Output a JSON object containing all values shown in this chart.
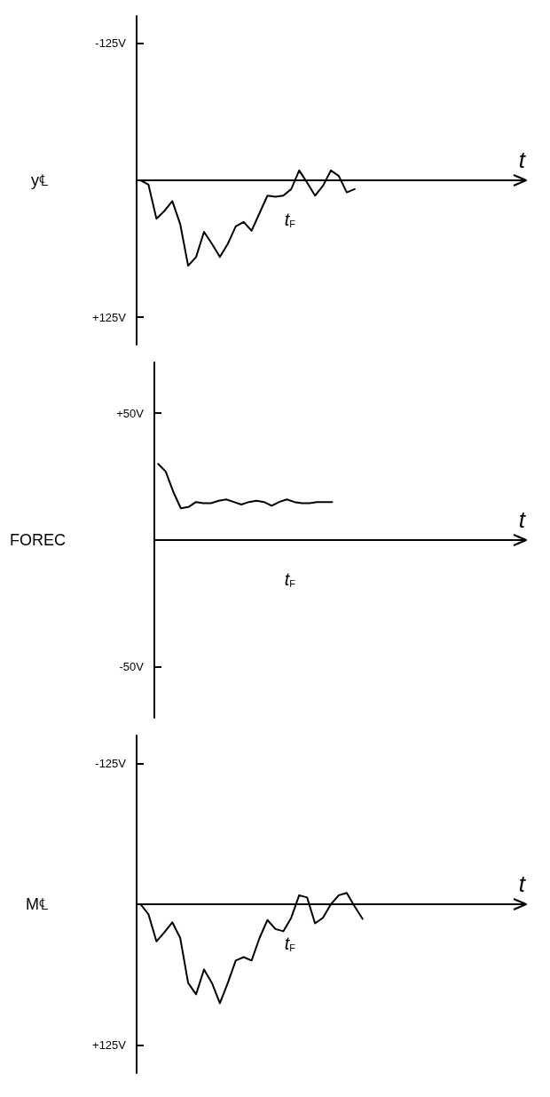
{
  "chart_data": [
    {
      "type": "line",
      "ylabel": "y℄",
      "xlabel": "t",
      "categories": [
        null,
        null,
        null,
        null,
        null,
        null,
        null,
        null,
        null,
        null,
        null,
        null,
        null,
        null,
        null,
        null,
        null,
        null,
        null,
        null,
        null,
        null,
        null,
        null,
        null,
        null,
        null,
        null,
        null,
        null,
        null,
        null,
        null,
        null,
        null,
        null,
        null,
        null,
        null,
        null,
        null,
        null,
        null,
        null,
        null,
        null,
        null,
        null,
        null
      ],
      "series": [
        {
          "color": "#000000",
          "values": [
            0,
            4,
            35,
            28,
            19,
            40,
            78,
            70,
            47,
            58,
            70,
            58,
            42,
            38,
            46,
            30,
            14,
            15,
            14,
            8,
            -9,
            2,
            14,
            5,
            -9,
            -4,
            11,
            8,
            null,
            null,
            null,
            null,
            null,
            null,
            null,
            null,
            null,
            null,
            null,
            null,
            null,
            null,
            null,
            null,
            null,
            null,
            null,
            null,
            null
          ]
        }
      ],
      "ylim": [
        150,
        -150
      ],
      "yticks": [
        {
          "value": -125,
          "label": "-125V"
        },
        {
          "value": 125,
          "label": "+125V"
        }
      ],
      "grid": false,
      "marker": "none",
      "annotations": [
        "t$_{F}$"
      ]
    },
    {
      "type": "line",
      "ylabel": "FOREC",
      "xlabel": "t",
      "categories": [
        null,
        null,
        null,
        null,
        null,
        null,
        null,
        null,
        null,
        null,
        null,
        null,
        null,
        null,
        null,
        null,
        null,
        null,
        null,
        null,
        null,
        null,
        null,
        null,
        null,
        null,
        null,
        null,
        null,
        null,
        null,
        null,
        null,
        null,
        null,
        null,
        null,
        null,
        null,
        null,
        null,
        null,
        null,
        null,
        null,
        null,
        null,
        null,
        null
      ],
      "series": [
        {
          "color": "#000000",
          "values": [
            30,
            27,
            19,
            12.5,
            13,
            15,
            14.5,
            14.5,
            15.5,
            16,
            15,
            14,
            15,
            15.5,
            15,
            13.5,
            15,
            16,
            15,
            14.5,
            14.5,
            15,
            15,
            15,
            null,
            null,
            null,
            null,
            null,
            null,
            null,
            null,
            null,
            null,
            null,
            null,
            null,
            null,
            null,
            null,
            null,
            null,
            null,
            null,
            null,
            null,
            null,
            null,
            null
          ]
        }
      ],
      "ylim": [
        -70,
        70
      ],
      "yticks": [
        {
          "value": -50,
          "label": "-50V"
        },
        {
          "value": 50,
          "label": "+50V"
        }
      ],
      "grid": false,
      "marker": "none",
      "annotations": [
        "t$_{F}$"
      ]
    },
    {
      "type": "line",
      "ylabel": "M℄",
      "xlabel": "t",
      "categories": [
        null,
        null,
        null,
        null,
        null,
        null,
        null,
        null,
        null,
        null,
        null,
        null,
        null,
        null,
        null,
        null,
        null,
        null,
        null,
        null,
        null,
        null,
        null,
        null,
        null,
        null,
        null,
        null,
        null,
        null,
        null,
        null,
        null,
        null,
        null,
        null,
        null,
        null,
        null,
        null,
        null,
        null,
        null,
        null,
        null,
        null,
        null,
        null,
        null
      ],
      "series": [
        {
          "color": "#000000",
          "values": [
            0,
            9,
            33,
            25,
            16,
            30,
            70,
            80,
            58,
            70,
            88,
            70,
            50,
            47,
            50,
            30,
            14,
            22,
            24,
            12,
            -8,
            -6,
            17,
            12,
            0,
            -8,
            -10,
            2,
            13,
            null,
            null,
            null,
            null,
            null,
            null,
            null,
            null,
            null,
            null,
            null,
            null,
            null,
            null,
            null,
            null,
            null,
            null,
            null,
            null
          ]
        }
      ],
      "ylim": [
        150,
        -150
      ],
      "yticks": [
        {
          "value": -125,
          "label": "-125V"
        },
        {
          "value": 125,
          "label": "+125V"
        }
      ],
      "grid": false,
      "marker": "none",
      "annotations": [
        "t$_{F}$"
      ]
    }
  ]
}
